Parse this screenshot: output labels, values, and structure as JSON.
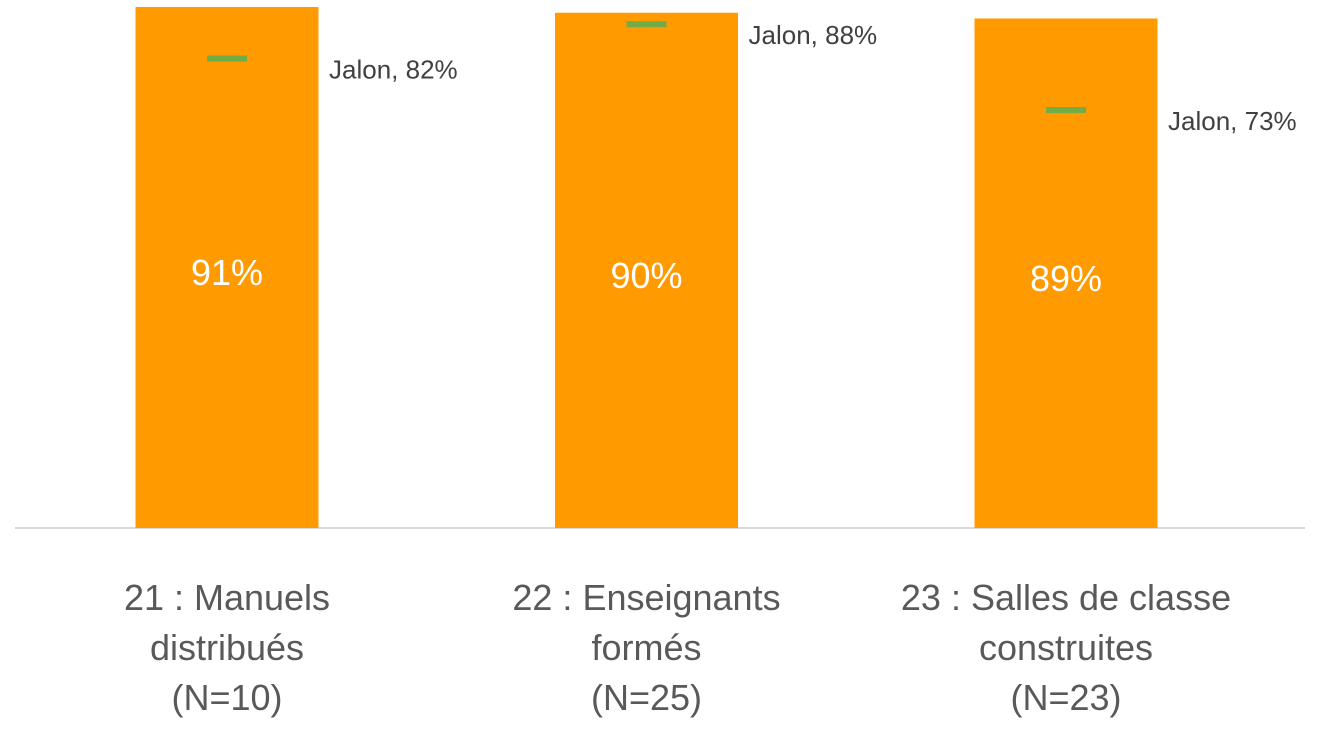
{
  "chart_data": {
    "type": "bar",
    "categories": [
      "21 : Manuels\ndistribués\n(N=10)",
      "22 : Enseignants\nformés\n(N=25)",
      "23 : Salles de classe\nconstruites\n(N=23)"
    ],
    "series": [
      {
        "color": "#ff9a00",
        "values": [
          91,
          90,
          89
        ],
        "value_labels": [
          "91%",
          "90%",
          "89%"
        ]
      },
      {
        "color": "#70ad47",
        "values": [
          82,
          88,
          73
        ],
        "value_labels": [
          "Jalon, 82%",
          "Jalon, 88%",
          "Jalon, 73%"
        ]
      }
    ],
    "ylim": [
      0,
      100
    ]
  }
}
